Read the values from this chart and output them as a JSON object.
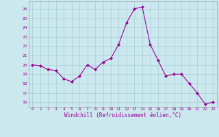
{
  "x": [
    0,
    1,
    2,
    3,
    4,
    5,
    6,
    7,
    8,
    9,
    10,
    11,
    12,
    13,
    14,
    15,
    16,
    17,
    18,
    19,
    20,
    21,
    22,
    23
  ],
  "y": [
    20.0,
    19.9,
    19.5,
    19.4,
    18.5,
    18.2,
    18.8,
    20.0,
    19.5,
    20.3,
    20.7,
    22.2,
    24.5,
    26.0,
    26.2,
    22.2,
    20.5,
    18.8,
    19.0,
    19.0,
    18.0,
    17.0,
    15.8,
    16.0
  ],
  "line_color": "#990099",
  "marker": "D",
  "marker_size": 2.0,
  "bg_color": "#cce8ef",
  "grid_color": "#b0d0d8",
  "xlabel": "Windchill (Refroidissement éolien,°C)",
  "xlabel_color": "#990099",
  "tick_color": "#990099",
  "ylim": [
    15.5,
    26.8
  ],
  "xlim": [
    -0.5,
    23.5
  ],
  "yticks": [
    16,
    17,
    18,
    19,
    20,
    21,
    22,
    23,
    24,
    25,
    26
  ],
  "xticks": [
    0,
    1,
    2,
    3,
    4,
    5,
    6,
    7,
    8,
    9,
    10,
    11,
    12,
    13,
    14,
    15,
    16,
    17,
    18,
    19,
    20,
    21,
    22,
    23
  ]
}
